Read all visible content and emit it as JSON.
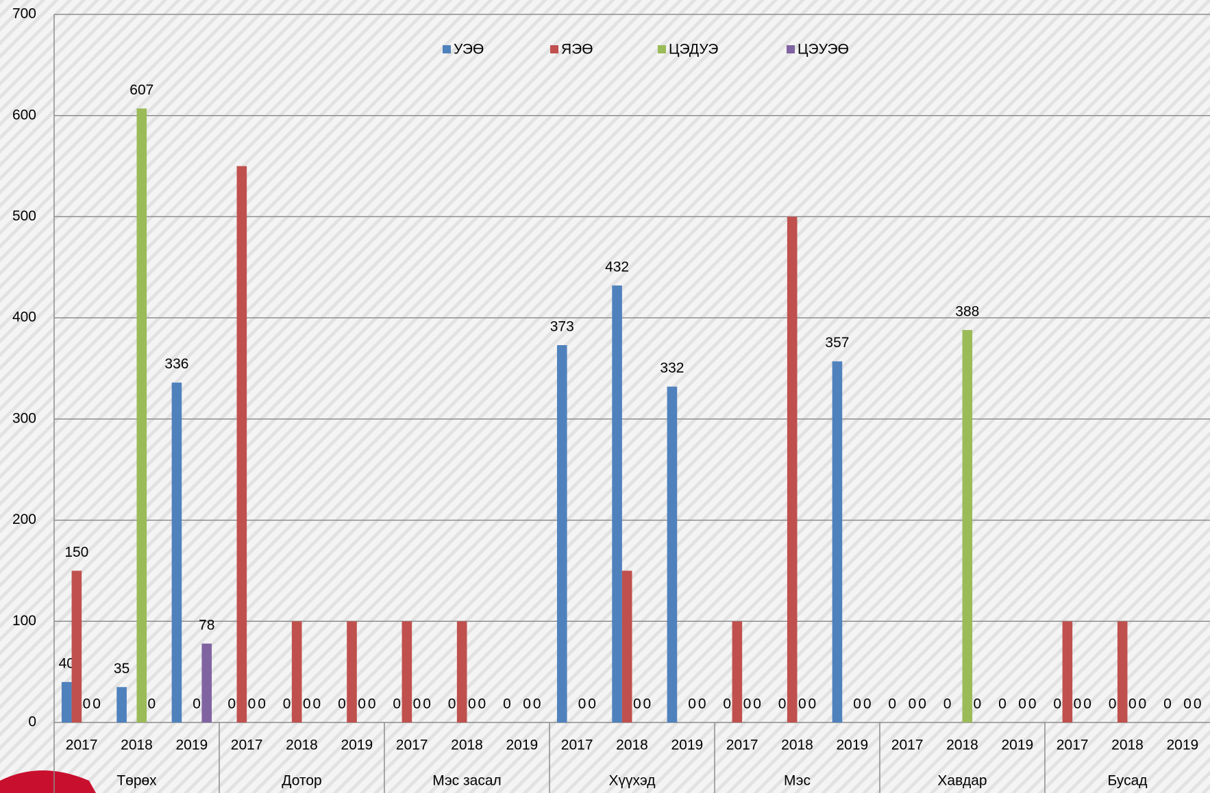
{
  "chart_data": {
    "type": "bar",
    "groups": [
      "Төрөх",
      "Дотор",
      "Мэс засал",
      "Хүүхэд",
      "Мэс",
      "Хавдар",
      "Бусад"
    ],
    "categories": [
      "2017",
      "2018",
      "2019",
      "2017",
      "2018",
      "2019",
      "2017",
      "2018",
      "2019",
      "2017",
      "2018",
      "2019",
      "2017",
      "2018",
      "2019",
      "2017",
      "2018",
      "2019",
      "2017",
      "2018",
      "2019"
    ],
    "series": [
      {
        "name": "УЭӨ",
        "color": "#4f81bd",
        "data_labels": true,
        "values": [
          40,
          35,
          336,
          0,
          0,
          0,
          0,
          0,
          0,
          373,
          432,
          332,
          0,
          0,
          357,
          0,
          0,
          0,
          0,
          0,
          0
        ]
      },
      {
        "name": "ЯЭӨ",
        "color": "#c0504d",
        "values": [
          150,
          0,
          0,
          550,
          100,
          100,
          100,
          100,
          0,
          0,
          150,
          0,
          100,
          500,
          0,
          0,
          0,
          0,
          100,
          100,
          0
        ],
        "value_labels": [
          "150",
          null,
          null,
          null,
          null,
          null,
          null,
          null,
          null,
          null,
          null,
          null,
          null,
          null,
          null,
          null,
          null,
          null,
          null,
          null,
          null
        ]
      },
      {
        "name": "ЦЭДУЭ",
        "color": "#9bbb59",
        "data_labels": true,
        "values": [
          0,
          607,
          0,
          0,
          0,
          0,
          0,
          0,
          0,
          0,
          0,
          0,
          0,
          0,
          0,
          0,
          388,
          0,
          0,
          0,
          0
        ]
      },
      {
        "name": "ЦЭУЭӨ",
        "color": "#8064a2",
        "data_labels": true,
        "values": [
          0,
          0,
          78,
          0,
          0,
          0,
          0,
          0,
          0,
          0,
          0,
          0,
          0,
          0,
          0,
          0,
          0,
          0,
          0,
          0,
          0
        ]
      }
    ],
    "ylim": [
      0,
      700
    ],
    "yticks": [
      0,
      100,
      200,
      300,
      400,
      500,
      600,
      700
    ],
    "grid": true
  }
}
